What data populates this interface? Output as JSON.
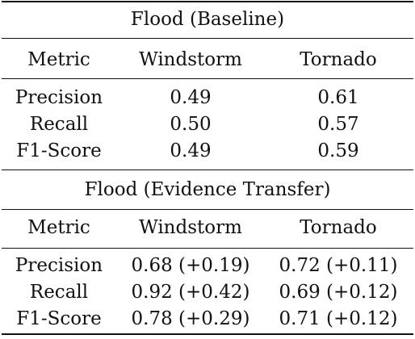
{
  "sections": [
    {
      "title": "Flood (Baseline)",
      "columns": [
        "Metric",
        "Windstorm",
        "Tornado"
      ],
      "rows": [
        [
          "Precision",
          "0.49",
          "0.61"
        ],
        [
          "Recall",
          "0.50",
          "0.57"
        ],
        [
          "F1-Score",
          "0.49",
          "0.59"
        ]
      ]
    },
    {
      "title": "Flood (Evidence Transfer)",
      "columns": [
        "Metric",
        "Windstorm",
        "Tornado"
      ],
      "rows": [
        [
          "Precision",
          "0.68 (+0.19)",
          "0.72 (+0.11)"
        ],
        [
          "Recall",
          "0.92 (+0.42)",
          "0.69 (+0.12)"
        ],
        [
          "F1-Score",
          "0.78 (+0.29)",
          "0.71 (+0.12)"
        ]
      ]
    }
  ]
}
